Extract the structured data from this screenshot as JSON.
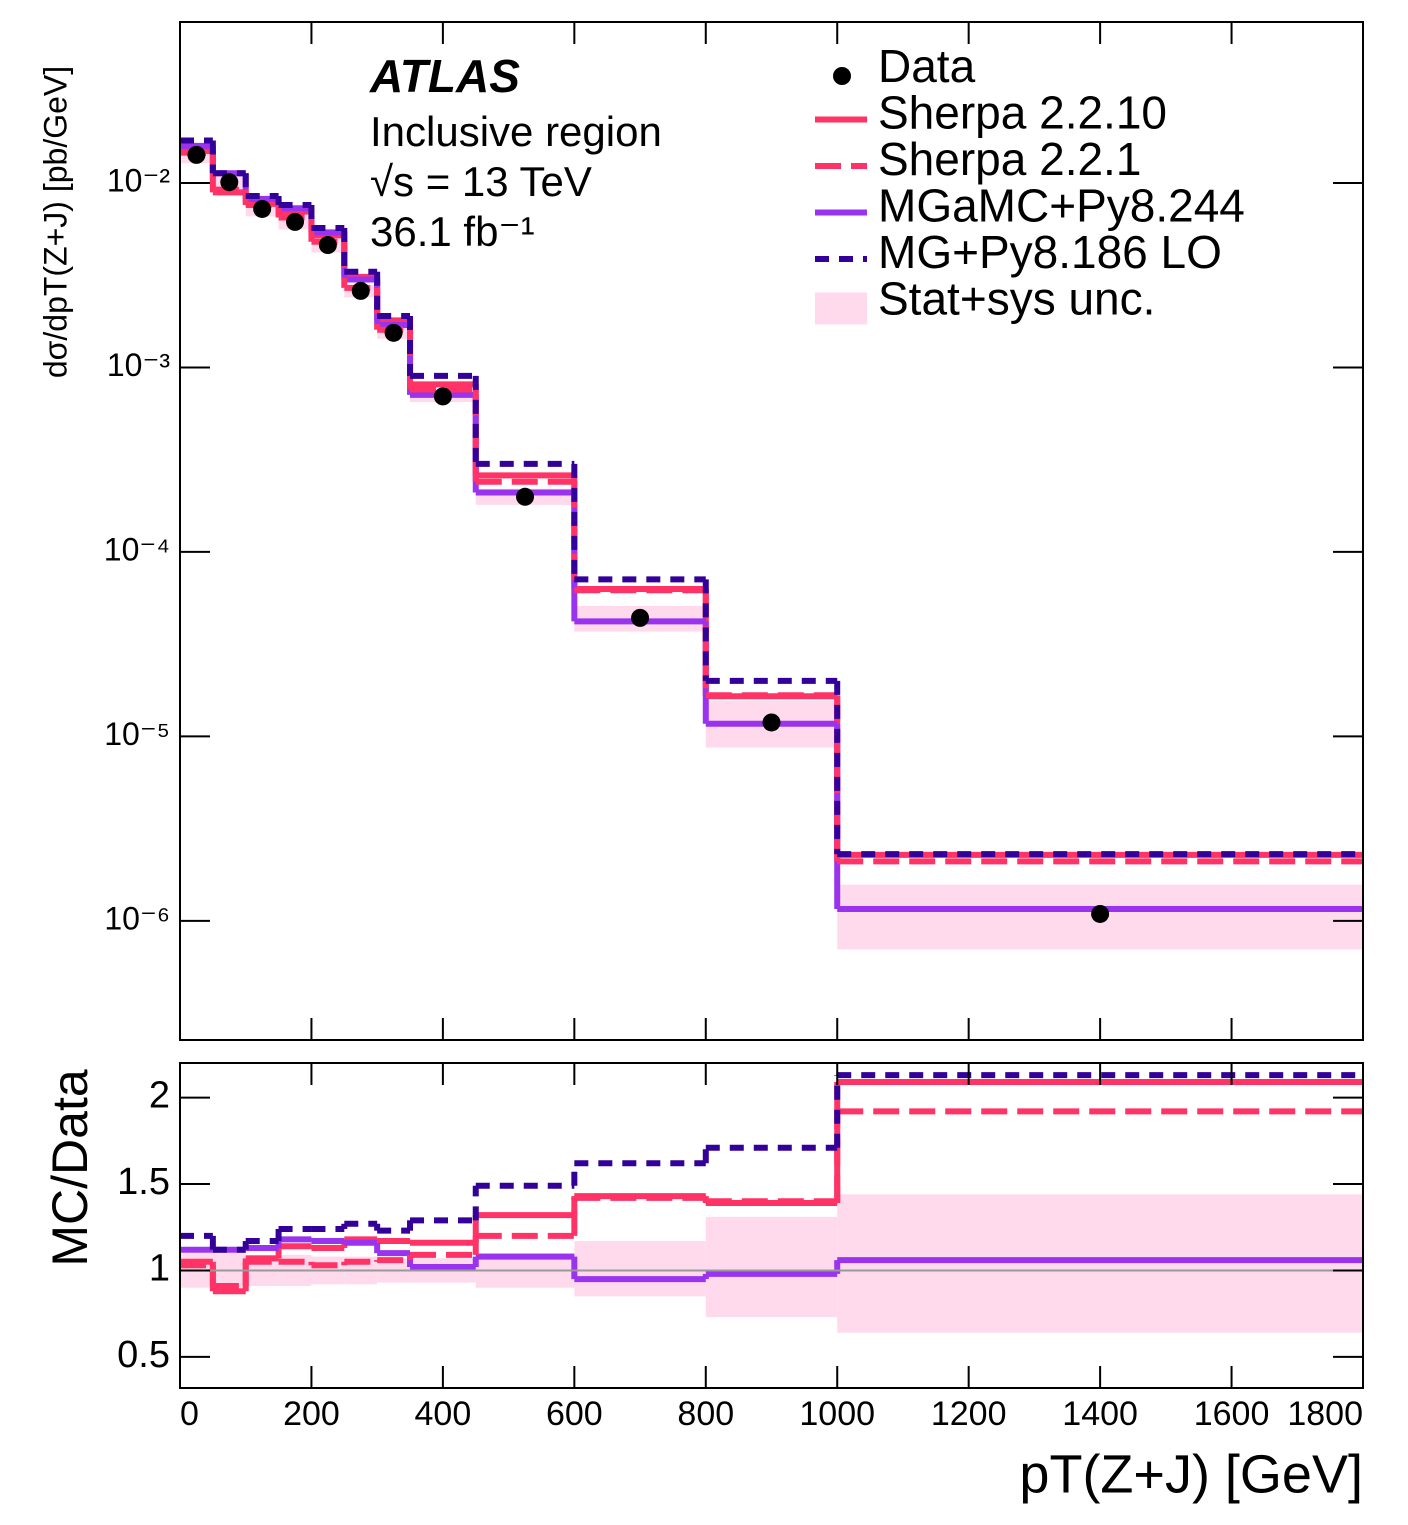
{
  "chart_data": [
    {
      "type": "histogram",
      "yscale": "log",
      "legend": "top-right",
      "bins": [
        0,
        50,
        100,
        150,
        200,
        250,
        300,
        350,
        450,
        600,
        800,
        1000,
        1800
      ],
      "xlim": [
        0,
        1800
      ],
      "xticks": [
        0,
        200,
        400,
        600,
        800,
        1000,
        1200,
        1400,
        1600,
        1800
      ],
      "ylim": [
        2.26e-07,
        0.0746
      ],
      "yticks": [
        {
          "value": 1e-06,
          "label": "10⁻⁶"
        },
        {
          "value": 1e-05,
          "label": "10⁻⁵"
        },
        {
          "value": 0.0001,
          "label": "10⁻⁴"
        },
        {
          "value": 0.001,
          "label": "10⁻³"
        },
        {
          "value": 0.01,
          "label": "10⁻²"
        }
      ],
      "ylabel": "dσ/dpT(Z+J)  [pb/GeV]",
      "annotations": [
        "ATLAS",
        "Inclusive region",
        "√s = 13 TeV",
        "36.1 fb⁻¹"
      ],
      "series": [
        {
          "name": "Data",
          "style": "points",
          "color": "#000000",
          "x": [
            25,
            75,
            125,
            175,
            225,
            275,
            325,
            400,
            525,
            700,
            900,
            1400
          ],
          "values": [
            0.0142,
            0.0101,
            0.00723,
            0.00615,
            0.00461,
            0.0026,
            0.00154,
            0.000697,
            0.000199,
            4.39e-05,
            1.19e-05,
            1.09e-06
          ]
        },
        {
          "name": "Sherpa 2.2.10",
          "style": "solid",
          "color": "#ff3366",
          "values": [
            0.0149,
            0.0089,
            0.0077,
            0.007,
            0.0052,
            0.0031,
            0.0018,
            0.00081,
            0.00026,
            6.3e-05,
            1.65e-05,
            2.28e-06
          ]
        },
        {
          "name": "Sherpa 2.2.1",
          "style": "dashed",
          "color": "#ff3366",
          "values": [
            0.0146,
            0.0092,
            0.0076,
            0.0065,
            0.0048,
            0.0027,
            0.0016,
            0.00076,
            0.00024,
            6.2e-05,
            1.67e-05,
            2.1e-06
          ]
        },
        {
          "name": "MGaMC+Py8.244",
          "style": "solid",
          "color": "#9933ee",
          "values": [
            0.0159,
            0.0113,
            0.0082,
            0.0073,
            0.0054,
            0.003,
            0.0017,
            0.00071,
            0.00021,
            4.2e-05,
            1.17e-05,
            1.16e-06
          ]
        },
        {
          "name": "MG+Py8.186 LO",
          "style": "dotted",
          "color": "#330099",
          "values": [
            0.017,
            0.0113,
            0.0085,
            0.0076,
            0.0057,
            0.0033,
            0.0019,
            0.0009,
            0.0003,
            7.1e-05,
            2e-05,
            2.3e-06
          ]
        },
        {
          "name": "Stat+sys unc.",
          "style": "band",
          "color": "#ffd9ec",
          "low": [
            0.0128,
            0.0091,
            0.0066,
            0.0056,
            0.0042,
            0.0024,
            0.00143,
            0.00065,
            0.00018,
            3.7e-05,
            8.7e-06,
            7e-07
          ],
          "high": [
            0.0156,
            0.0111,
            0.0079,
            0.0067,
            0.005,
            0.0028,
            0.00165,
            0.00075,
            0.00022,
            5.1e-05,
            1.56e-05,
            1.57e-06
          ]
        }
      ]
    },
    {
      "type": "histogram",
      "yscale": "linear",
      "reference": 1,
      "bins": [
        0,
        50,
        100,
        150,
        200,
        250,
        300,
        350,
        450,
        600,
        800,
        1000,
        1800
      ],
      "xlim": [
        0,
        1800
      ],
      "xticks": [
        0,
        200,
        400,
        600,
        800,
        1000,
        1200,
        1400,
        1600,
        1800
      ],
      "ylim": [
        0.32,
        2.2
      ],
      "yticks": [
        0.5,
        1,
        1.5,
        2
      ],
      "xlabel": "pT(Z+J)  [GeV]",
      "ylabel": "MC/Data",
      "series": [
        {
          "style": "band",
          "color": "#ffd9ec",
          "low": [
            0.9,
            0.9,
            0.91,
            0.91,
            0.92,
            0.92,
            0.93,
            0.93,
            0.9,
            0.85,
            0.73,
            0.64
          ],
          "high": [
            1.1,
            1.1,
            1.09,
            1.09,
            1.08,
            1.08,
            1.07,
            1.07,
            1.1,
            1.17,
            1.31,
            1.44
          ]
        },
        {
          "style": "solid",
          "color": "#ff3366",
          "values": [
            1.05,
            0.88,
            1.07,
            1.14,
            1.13,
            1.18,
            1.17,
            1.16,
            1.32,
            1.43,
            1.39,
            2.09
          ]
        },
        {
          "style": "dashed",
          "color": "#ff3366",
          "values": [
            1.03,
            0.91,
            1.05,
            1.05,
            1.03,
            1.05,
            1.06,
            1.09,
            1.2,
            1.42,
            1.4,
            1.92
          ]
        },
        {
          "style": "solid",
          "color": "#9933ee",
          "values": [
            1.12,
            1.12,
            1.13,
            1.18,
            1.17,
            1.16,
            1.1,
            1.02,
            1.08,
            0.95,
            0.98,
            1.06
          ]
        },
        {
          "style": "dotted",
          "color": "#330099",
          "values": [
            1.2,
            1.12,
            1.17,
            1.24,
            1.24,
            1.27,
            1.23,
            1.29,
            1.49,
            1.62,
            1.71,
            2.13
          ]
        }
      ]
    }
  ]
}
